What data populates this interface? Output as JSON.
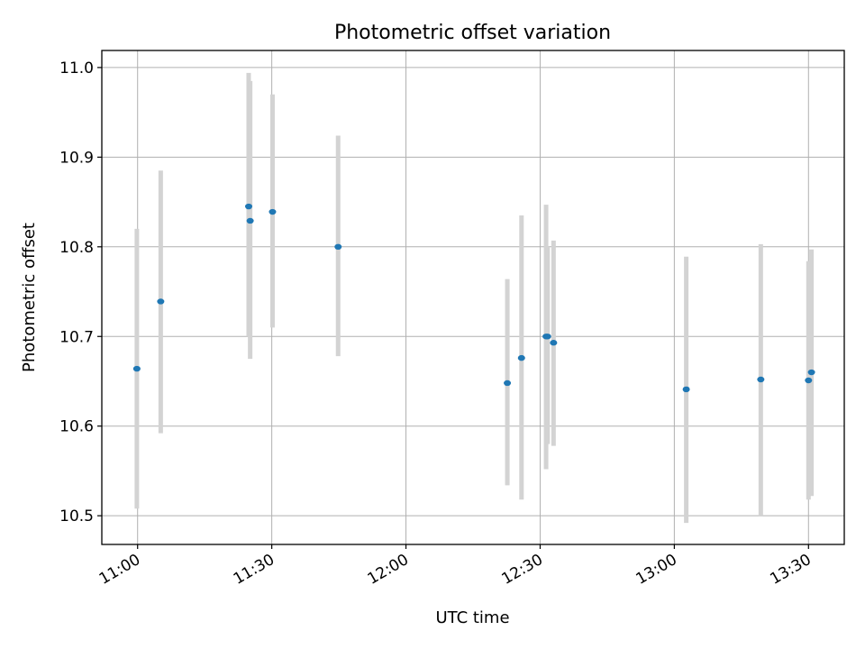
{
  "chart_data": {
    "type": "scatter",
    "title": "Photometric offset variation",
    "xlabel": "UTC time",
    "ylabel": "Photometric offset",
    "x_tick_labels": [
      "11:00",
      "11:30",
      "12:00",
      "12:30",
      "13:00",
      "13:30"
    ],
    "x_tick_times": [
      "11:00",
      "11:30",
      "12:00",
      "12:30",
      "13:00",
      "13:30"
    ],
    "y_ticks": [
      10.5,
      10.6,
      10.7,
      10.8,
      10.9,
      11.0
    ],
    "y_tick_labels": [
      "10.5",
      "10.6",
      "10.7",
      "10.8",
      "10.9",
      "11.0"
    ],
    "xlim": [
      "10:52",
      "13:38"
    ],
    "ylim": [
      10.468,
      11.019
    ],
    "grid": true,
    "error_bar_color": "#d3d3d3",
    "point_color": "#1f77b4",
    "points": [
      {
        "x": "10:59:50",
        "y": 10.664,
        "lo": 10.508,
        "hi": 10.82
      },
      {
        "x": "11:05:10",
        "y": 10.739,
        "lo": 10.592,
        "hi": 10.885
      },
      {
        "x": "11:24:50",
        "y": 10.845,
        "lo": 10.7,
        "hi": 10.994
      },
      {
        "x": "11:25:10",
        "y": 10.829,
        "lo": 10.675,
        "hi": 10.985
      },
      {
        "x": "11:30:10",
        "y": 10.839,
        "lo": 10.71,
        "hi": 10.97
      },
      {
        "x": "11:44:50",
        "y": 10.8,
        "lo": 10.678,
        "hi": 10.924
      },
      {
        "x": "12:22:40",
        "y": 10.648,
        "lo": 10.534,
        "hi": 10.764
      },
      {
        "x": "12:25:50",
        "y": 10.676,
        "lo": 10.518,
        "hi": 10.835
      },
      {
        "x": "12:31:20",
        "y": 10.7,
        "lo": 10.552,
        "hi": 10.847
      },
      {
        "x": "12:31:40",
        "y": 10.7,
        "lo": 10.58,
        "hi": 10.8
      },
      {
        "x": "12:33:00",
        "y": 10.693,
        "lo": 10.578,
        "hi": 10.807
      },
      {
        "x": "13:02:40",
        "y": 10.641,
        "lo": 10.492,
        "hi": 10.789
      },
      {
        "x": "13:19:20",
        "y": 10.652,
        "lo": 10.5,
        "hi": 10.803
      },
      {
        "x": "13:30:00",
        "y": 10.651,
        "lo": 10.518,
        "hi": 10.784
      },
      {
        "x": "13:30:40",
        "y": 10.66,
        "lo": 10.522,
        "hi": 10.797
      }
    ]
  }
}
